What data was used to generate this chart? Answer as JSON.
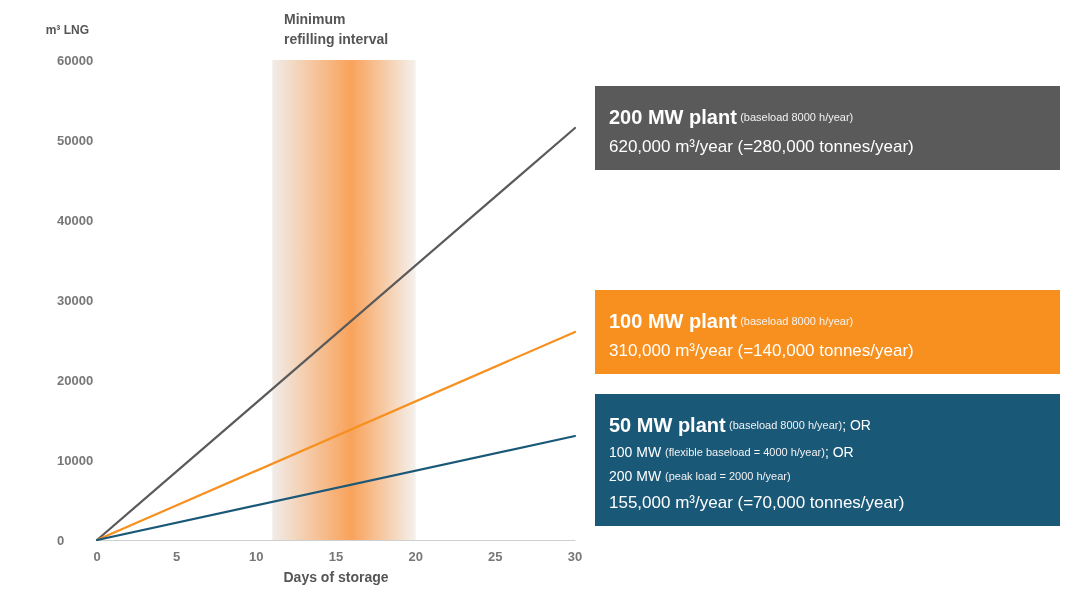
{
  "chart_data": {
    "type": "line",
    "xlabel": "Days of storage",
    "ylabel": "m³ LNG",
    "x": [
      0,
      30
    ],
    "series": [
      {
        "name": "200 MW plant",
        "color": "#5a5a5a",
        "values": [
          0,
          51500
        ]
      },
      {
        "name": "100 MW plant",
        "color": "#f7901e",
        "values": [
          0,
          26000
        ]
      },
      {
        "name": "50 MW plant",
        "color": "#1a5878",
        "values": [
          0,
          13000
        ]
      }
    ],
    "annotations": [
      "(baseload 8000 h/year)\n620,000 m³/year (=280,000 tonnes/year)",
      "(baseload 8000 h/year)\n310,000 m³/year (=140,000 tonnes/year)",
      "(baseload 8000 h/year); OR\n100 MW (flexible baseload = 4000 h/year); OR\n200 MW (peak load = 2000 h/year)\n155,000 m³/year (=70,000 tonnes/year)"
    ],
    "bands": [
      {
        "axis": "x",
        "from": 11,
        "to": 20,
        "label": "Minimum refilling interval",
        "color": "#f9a25a"
      }
    ],
    "xlim": [
      0,
      30
    ],
    "xticks": [
      0,
      5,
      10,
      15,
      20,
      25,
      30
    ],
    "ylim": [
      0,
      60000
    ],
    "yticks": [
      0,
      10000,
      20000,
      30000,
      40000,
      50000,
      60000
    ],
    "marker": "none",
    "line_style": "solid"
  }
}
